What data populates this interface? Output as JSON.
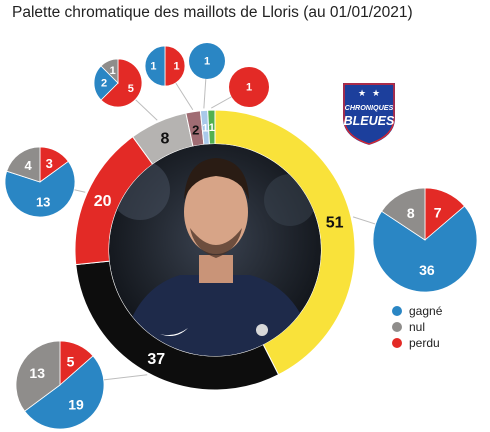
{
  "title": "Palette chromatique des maillots de Lloris (au 01/01/2021)",
  "colors": {
    "gagne": "#2a86c4",
    "nul": "#8f8d8b",
    "perdu": "#e32a26",
    "jaune": "#f9e23a",
    "noir": "#0d0d0d",
    "rouge": "#e32a26",
    "gris": "#b5b3b1",
    "rose": "#a06c73",
    "bleu_clair": "#a9c9ea",
    "vert": "#52b050"
  },
  "legend": [
    {
      "label": "gagné",
      "color": "#2a86c4"
    },
    {
      "label": "nul",
      "color": "#8f8d8b"
    },
    {
      "label": "perdu",
      "color": "#e32a26"
    }
  ],
  "logo": {
    "line1": "CHRONIQUES",
    "line2": "BLEUES"
  },
  "photo_icon": "goalkeeper-photo",
  "chart_data": {
    "type": "pie",
    "title": "Palette chromatique des maillots de Lloris (au 01/01/2021)",
    "slices": [
      {
        "jersey": "jaune",
        "value": 51,
        "color": "#f9e23a"
      },
      {
        "jersey": "noir",
        "value": 37,
        "color": "#0d0d0d"
      },
      {
        "jersey": "rouge",
        "value": 20,
        "color": "#e32a26"
      },
      {
        "jersey": "gris",
        "value": 8,
        "color": "#b5b3b1"
      },
      {
        "jersey": "rose",
        "value": 2,
        "color": "#a06c73"
      },
      {
        "jersey": "bleu clair",
        "value": 1,
        "color": "#a9c9ea"
      },
      {
        "jersey": "vert",
        "value": 1,
        "color": "#52b050"
      }
    ],
    "breakdowns": [
      {
        "jersey": "jaune",
        "gagné": 36,
        "nul": 8,
        "perdu": 7
      },
      {
        "jersey": "noir",
        "gagné": 19,
        "nul": 13,
        "perdu": 5
      },
      {
        "jersey": "rouge",
        "gagné": 13,
        "nul": 4,
        "perdu": 3
      },
      {
        "jersey": "gris",
        "gagné": 2,
        "nul": 1,
        "perdu": 5
      },
      {
        "jersey": "rose",
        "gagné": 1,
        "nul": 0,
        "perdu": 1
      },
      {
        "jersey": "bleu clair",
        "gagné": 1,
        "nul": 0,
        "perdu": 0
      },
      {
        "jersey": "vert",
        "gagné": 0,
        "nul": 0,
        "perdu": 1
      }
    ],
    "legend": [
      "gagné",
      "nul",
      "perdu"
    ]
  }
}
